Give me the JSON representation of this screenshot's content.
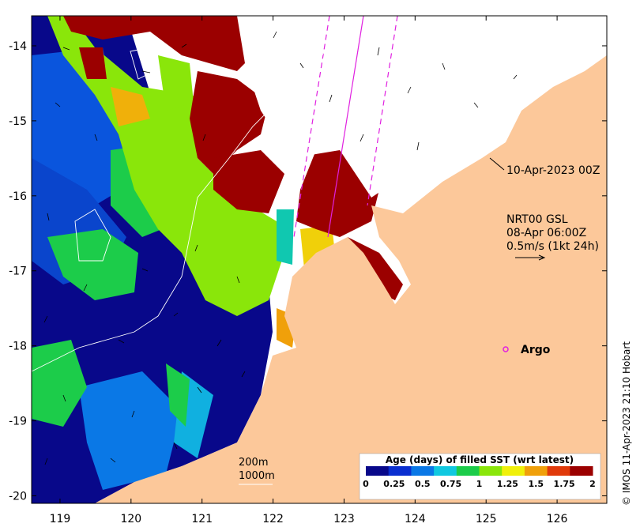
{
  "map": {
    "x_ticks": [
      "119",
      "120",
      "121",
      "122",
      "123",
      "124",
      "125",
      "126"
    ],
    "y_ticks": [
      "-14",
      "-15",
      "-16",
      "-17",
      "-18",
      "-19",
      "-20"
    ],
    "lon_range": [
      118.6,
      126.7
    ],
    "lat_range": [
      -20.1,
      -13.6
    ],
    "tick_values_x": [
      119,
      120,
      121,
      122,
      123,
      124,
      125,
      126
    ],
    "tick_values_y": [
      -14,
      -15,
      -16,
      -17,
      -18,
      -19,
      -20
    ]
  },
  "annotations": {
    "date_label": "10-Apr-2023 00Z",
    "current_source": "NRT00 GSL",
    "current_time": "08-Apr 06:00Z",
    "current_scale": "0.5m/s (1kt 24h)",
    "argo_label": "Argo",
    "contour_200": "200m",
    "contour_1000": "1000m"
  },
  "colorbar": {
    "title": "Age (days) of filled SST (wrt latest)",
    "ticks": [
      "0",
      "0.25",
      "0.5",
      "0.75",
      "1",
      "1.25",
      "1.5",
      "1.75",
      "2"
    ],
    "colors": [
      "#08088a",
      "#0a2fd0",
      "#0a78e6",
      "#10c8e0",
      "#1ccc4a",
      "#8ae60a",
      "#f0f00a",
      "#f0a00a",
      "#e03a0a",
      "#9b0000"
    ]
  },
  "credit": "© IMOS 11-Apr-2023 21:10 Hobart",
  "colors": {
    "land": "#fcc89a",
    "cloud": "#ffffff",
    "magenta": "#e020e0"
  }
}
